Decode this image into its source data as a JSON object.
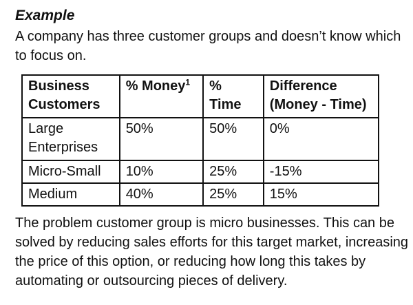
{
  "heading": "Example",
  "intro": "A company has three customer groups and doesn’t know which to focus on.",
  "table": {
    "headers": {
      "group": "Business Customers",
      "money": "% Money",
      "money_sup": "1",
      "time": "% Time",
      "difference": "Difference (Money - Time)"
    },
    "rows": [
      {
        "group": "Large Enterprises",
        "money": "50%",
        "time": "50%",
        "difference": "0%"
      },
      {
        "group": "Micro-Small",
        "money": "10%",
        "time": "25%",
        "difference": "-15%"
      },
      {
        "group": "Medium",
        "money": "40%",
        "time": "25%",
        "difference": "15%"
      }
    ]
  },
  "conclusion": "The problem customer group is micro businesses.  This can be solved by reducing sales efforts for this target market, increasing the price of this option, or reducing how long this takes by automating or outsourcing pieces of delivery."
}
